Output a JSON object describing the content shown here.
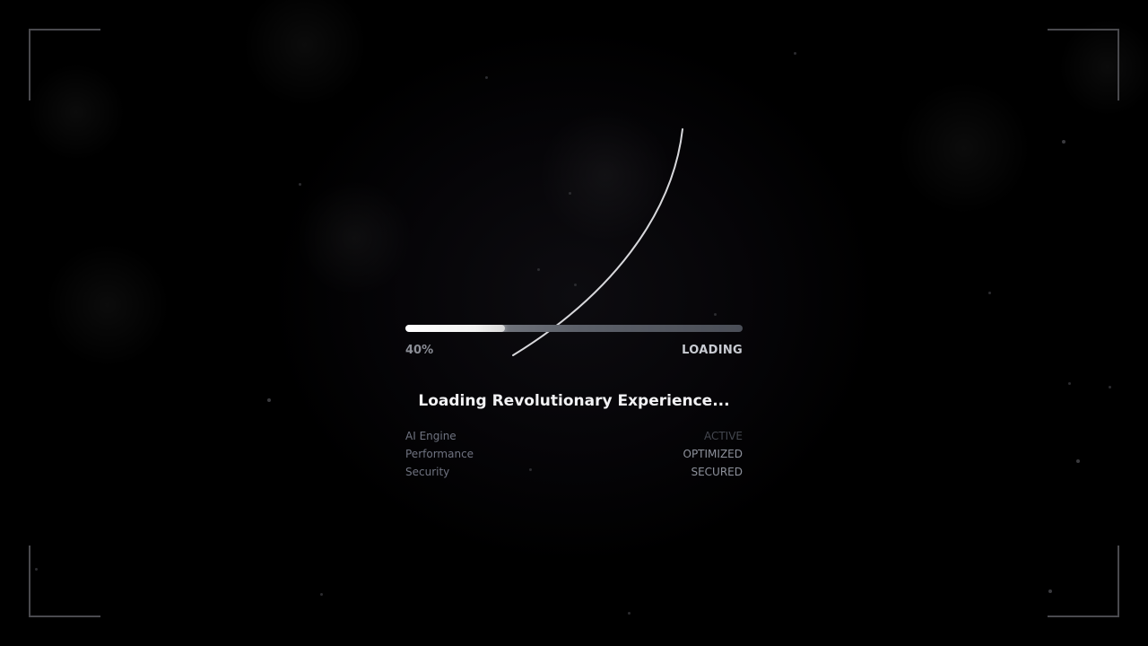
{
  "progress": {
    "value": 0.4,
    "percent_label": "40%",
    "status_label": "LOADING"
  },
  "headline": "Loading Revolutionary Experience...",
  "system_status": [
    {
      "label": "AI Engine",
      "value": "ACTIVE"
    },
    {
      "label": "Performance",
      "value": "OPTIMIZED"
    },
    {
      "label": "Security",
      "value": "SECURED"
    }
  ],
  "colors": {
    "background": "#000000",
    "accent": "#ffffff",
    "text_muted": "#6f7380",
    "frame": "#4a4a4e"
  }
}
